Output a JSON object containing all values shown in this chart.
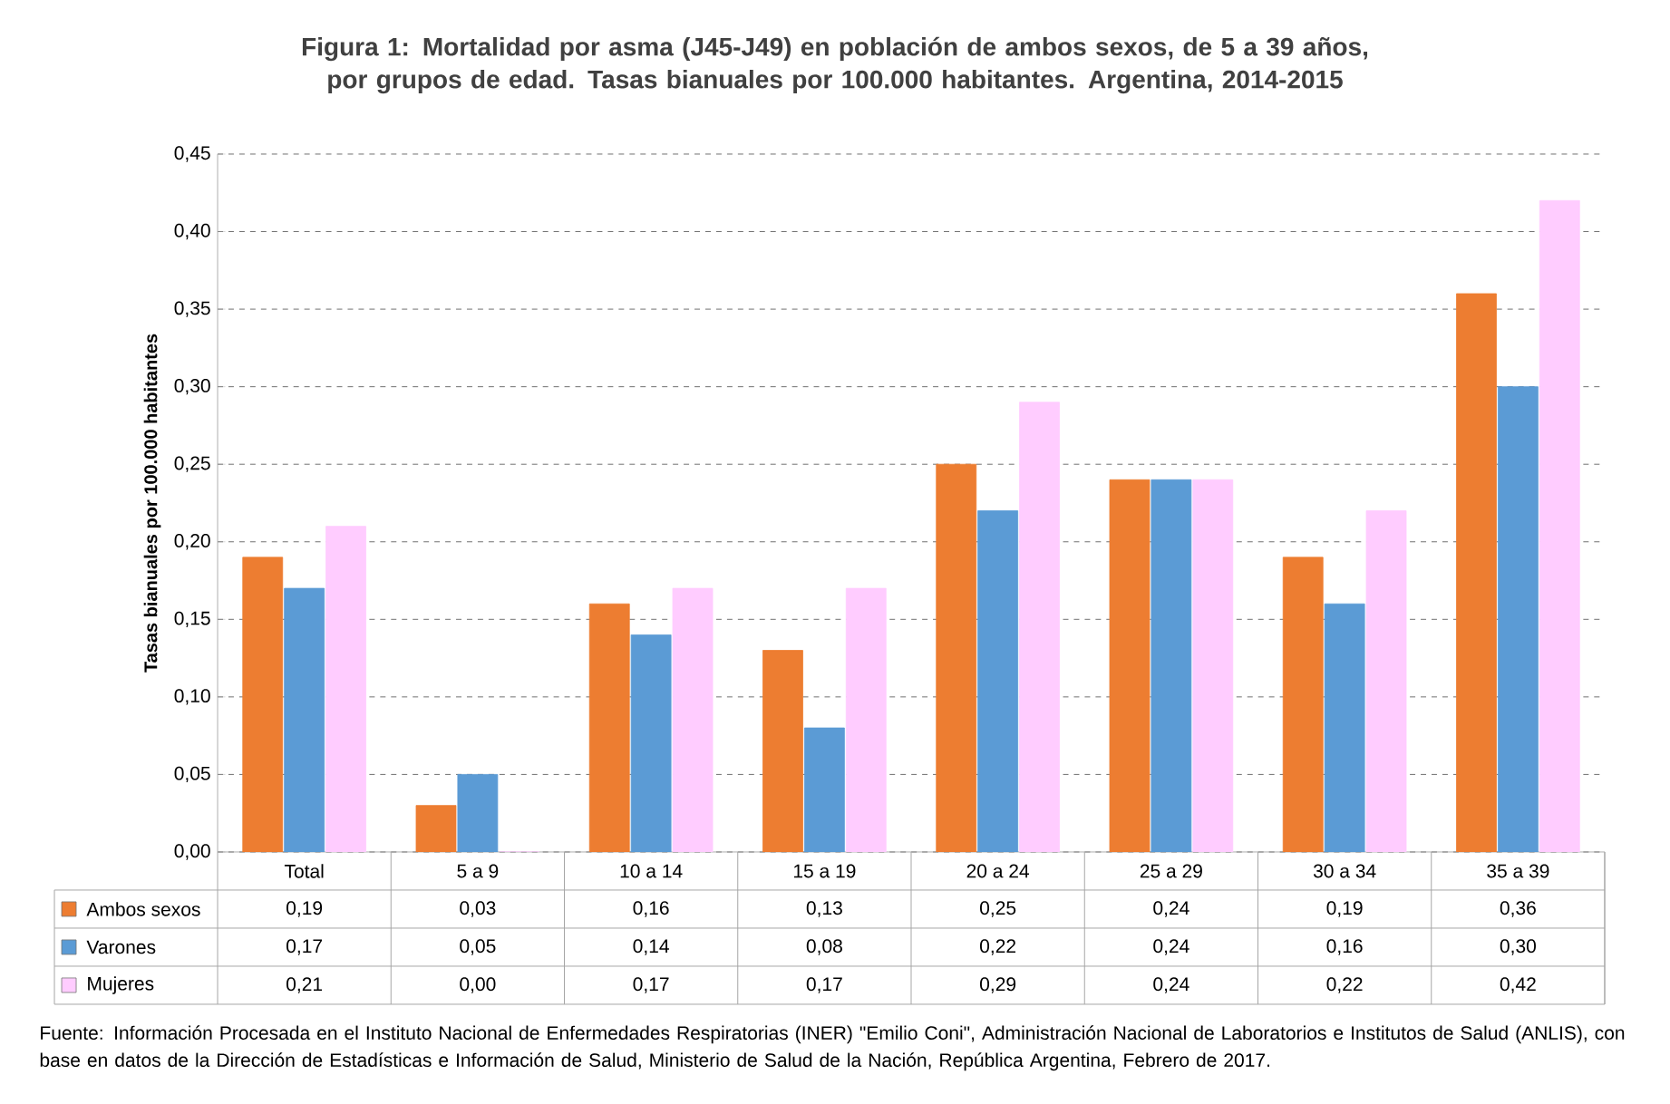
{
  "chart_data": {
    "type": "bar",
    "title": "Figura 1: Mortalidad por asma (J45-J49) en población de ambos sexos, de 5 a 39 años, por grupos de edad. Tasas bianuales por 100.000 habitantes. Argentina, 2014-2015",
    "ylabel": "Tasas bianuales por 100.000 habitantes",
    "categories": [
      "Total",
      "5 a 9",
      "10 a 14",
      "15 a 19",
      "20 a 24",
      "25 a 29",
      "30 a 34",
      "35 a 39"
    ],
    "series": [
      {
        "name": "Ambos sexos",
        "color": "#ed7d31",
        "values": [
          0.19,
          0.03,
          0.16,
          0.13,
          0.25,
          0.24,
          0.19,
          0.36
        ],
        "value_labels": [
          "0,19",
          "0,03",
          "0,16",
          "0,13",
          "0,25",
          "0,24",
          "0,19",
          "0,36"
        ]
      },
      {
        "name": "Varones",
        "color": "#5b9bd5",
        "values": [
          0.17,
          0.05,
          0.14,
          0.08,
          0.22,
          0.24,
          0.16,
          0.3
        ],
        "value_labels": [
          "0,17",
          "0,05",
          "0,14",
          "0,08",
          "0,22",
          "0,24",
          "0,16",
          "0,30"
        ]
      },
      {
        "name": "Mujeres",
        "color": "#ffccff",
        "values": [
          0.21,
          0.0,
          0.17,
          0.17,
          0.29,
          0.24,
          0.22,
          0.42
        ],
        "value_labels": [
          "0,21",
          "0,00",
          "0,17",
          "0,17",
          "0,29",
          "0,24",
          "0,22",
          "0,42"
        ]
      }
    ],
    "ylim": [
      0,
      0.45
    ],
    "yticks": [
      {
        "value": 0,
        "label": "0,00"
      },
      {
        "value": 0.05,
        "label": "0,05"
      },
      {
        "value": 0.1,
        "label": "0,10"
      },
      {
        "value": 0.15,
        "label": "0,15"
      },
      {
        "value": 0.2,
        "label": "0,20"
      },
      {
        "value": 0.25,
        "label": "0,25"
      },
      {
        "value": 0.3,
        "label": "0,30"
      },
      {
        "value": 0.35,
        "label": "0,35"
      },
      {
        "value": 0.4,
        "label": "0,40"
      },
      {
        "value": 0.45,
        "label": "0,45"
      }
    ],
    "grid": "y",
    "legend": "bottom",
    "annotations": [
      "Fuente: Información Procesada en el Instituto Nacional de Enfermedades Respiratorias (INER) \"Emilio Coni\", Administración Nacional de Laboratorios e Institutos de Salud (ANLIS), con base en datos de la Dirección de Estadísticas e Información de Salud, Ministerio de Salud de la Nación, República Argentina, Febrero de 2017."
    ]
  }
}
